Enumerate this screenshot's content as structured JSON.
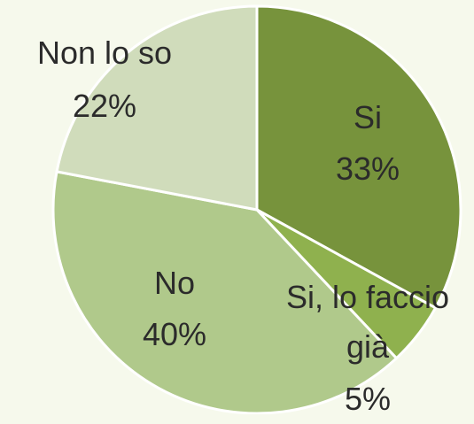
{
  "chart_data": {
    "type": "pie",
    "categories": [
      "Si",
      "Si, lo faccio già",
      "No",
      "Non lo so"
    ],
    "values": [
      33,
      5,
      40,
      22
    ],
    "value_labels": [
      "33%",
      "5%",
      "40%",
      "22%"
    ],
    "colors": [
      "#77933c",
      "#8fb14e",
      "#b0c98b",
      "#d0dcbb"
    ]
  }
}
